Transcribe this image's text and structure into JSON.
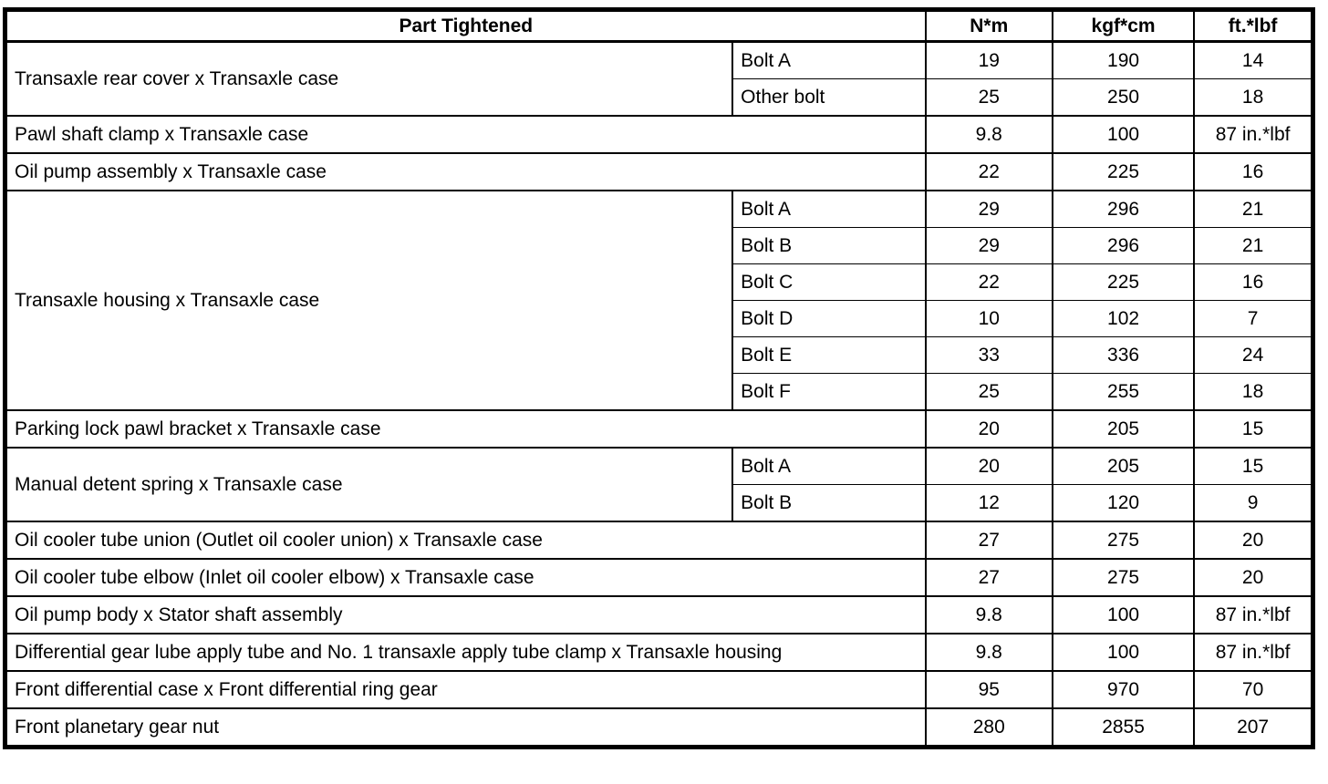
{
  "meta": {
    "background_color": "#ffffff",
    "line_color": "#000000",
    "text_color": "#000000"
  },
  "table": {
    "header": {
      "part": "Part Tightened",
      "nm": "N*m",
      "kgfcm": "kgf*cm",
      "ftlbf": "ft.*lbf"
    },
    "groups": [
      {
        "part": "Transaxle rear cover x Transaxle case",
        "rows": [
          {
            "sub": "Bolt A",
            "nm": "19",
            "kgfcm": "190",
            "ftlbf": "14"
          },
          {
            "sub": "Other bolt",
            "nm": "25",
            "kgfcm": "250",
            "ftlbf": "18"
          }
        ]
      },
      {
        "part": "Pawl shaft clamp x Transaxle case",
        "rows": [
          {
            "nm": "9.8",
            "kgfcm": "100",
            "ftlbf": "87 in.*lbf"
          }
        ]
      },
      {
        "part": "Oil pump assembly x Transaxle case",
        "rows": [
          {
            "nm": "22",
            "kgfcm": "225",
            "ftlbf": "16"
          }
        ]
      },
      {
        "part": "Transaxle housing x Transaxle case",
        "rows": [
          {
            "sub": "Bolt A",
            "nm": "29",
            "kgfcm": "296",
            "ftlbf": "21"
          },
          {
            "sub": "Bolt B",
            "nm": "29",
            "kgfcm": "296",
            "ftlbf": "21"
          },
          {
            "sub": "Bolt C",
            "nm": "22",
            "kgfcm": "225",
            "ftlbf": "16"
          },
          {
            "sub": "Bolt D",
            "nm": "10",
            "kgfcm": "102",
            "ftlbf": "7"
          },
          {
            "sub": "Bolt E",
            "nm": "33",
            "kgfcm": "336",
            "ftlbf": "24"
          },
          {
            "sub": "Bolt F",
            "nm": "25",
            "kgfcm": "255",
            "ftlbf": "18"
          }
        ]
      },
      {
        "part": "Parking lock pawl bracket x Transaxle case",
        "rows": [
          {
            "nm": "20",
            "kgfcm": "205",
            "ftlbf": "15"
          }
        ]
      },
      {
        "part": "Manual detent spring x Transaxle case",
        "rows": [
          {
            "sub": "Bolt A",
            "nm": "20",
            "kgfcm": "205",
            "ftlbf": "15"
          },
          {
            "sub": "Bolt B",
            "nm": "12",
            "kgfcm": "120",
            "ftlbf": "9"
          }
        ]
      },
      {
        "part": "Oil cooler tube union (Outlet oil cooler union) x Transaxle case",
        "rows": [
          {
            "nm": "27",
            "kgfcm": "275",
            "ftlbf": "20"
          }
        ]
      },
      {
        "part": "Oil cooler tube elbow (Inlet oil cooler elbow) x Transaxle case",
        "rows": [
          {
            "nm": "27",
            "kgfcm": "275",
            "ftlbf": "20"
          }
        ]
      },
      {
        "part": "Oil pump body x Stator shaft assembly",
        "rows": [
          {
            "nm": "9.8",
            "kgfcm": "100",
            "ftlbf": "87 in.*lbf"
          }
        ]
      },
      {
        "part": "Differential gear lube apply tube and No. 1 transaxle apply tube clamp x Transaxle housing",
        "rows": [
          {
            "nm": "9.8",
            "kgfcm": "100",
            "ftlbf": "87 in.*lbf"
          }
        ]
      },
      {
        "part": "Front differential case x Front differential ring gear",
        "rows": [
          {
            "nm": "95",
            "kgfcm": "970",
            "ftlbf": "70"
          }
        ]
      },
      {
        "part": "Front planetary gear nut",
        "rows": [
          {
            "nm": "280",
            "kgfcm": "2855",
            "ftlbf": "207"
          }
        ]
      }
    ]
  }
}
